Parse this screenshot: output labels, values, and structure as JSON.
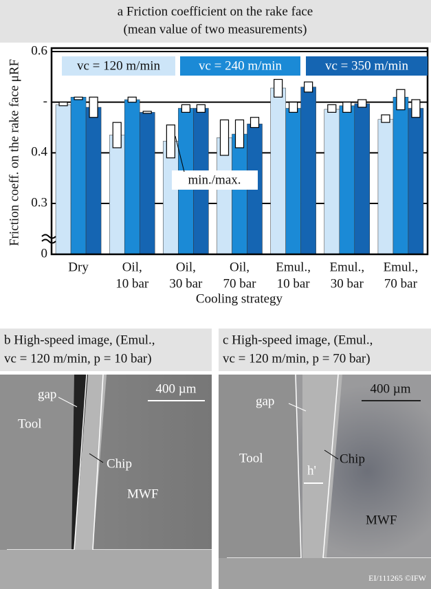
{
  "chart_data": {
    "type": "bar",
    "title": "a  Friction coefficient on the rake face",
    "subtitle": "(mean value of two measurements)",
    "y_label": "Friction coeff. on the rake face μRF",
    "x_label": "Cooling strategy",
    "annotation": "min./max.",
    "categories": [
      [
        "Dry"
      ],
      [
        "Oil,",
        "10 bar"
      ],
      [
        "Oil,",
        "30 bar"
      ],
      [
        "Oil,",
        "70 bar"
      ],
      [
        "Emul.,",
        "10 bar"
      ],
      [
        "Emul.,",
        "30 bar"
      ],
      [
        "Emul.,",
        "70 bar"
      ]
    ],
    "series": [
      {
        "name": "vc = 120 m/min",
        "color": "#cde5f8",
        "values": [
          0.495,
          0.435,
          0.423,
          0.43,
          0.528,
          0.486,
          0.466
        ],
        "min": [
          0.493,
          0.41,
          0.39,
          0.395,
          0.51,
          0.48,
          0.46
        ],
        "max": [
          0.5,
          0.46,
          0.455,
          0.465,
          0.545,
          0.495,
          0.475
        ]
      },
      {
        "name": "vc = 240 m/min",
        "color": "#1b8ad6",
        "values": [
          0.51,
          0.505,
          0.488,
          0.437,
          0.488,
          0.493,
          0.51
        ],
        "min": [
          0.505,
          0.5,
          0.48,
          0.41,
          0.48,
          0.48,
          0.485
        ],
        "max": [
          0.51,
          0.51,
          0.495,
          0.465,
          0.5,
          0.5,
          0.525
        ]
      },
      {
        "name": "vc = 350 m/min",
        "color": "#1565b2",
        "values": [
          0.49,
          0.48,
          0.488,
          0.457,
          0.53,
          0.497,
          0.488
        ],
        "min": [
          0.47,
          0.478,
          0.48,
          0.45,
          0.52,
          0.49,
          0.47
        ],
        "max": [
          0.51,
          0.482,
          0.495,
          0.47,
          0.54,
          0.505,
          0.505
        ]
      }
    ],
    "ylim": [
      0,
      0.6
    ],
    "yticks": [
      0,
      0.3,
      0.4,
      {
        "value": 0.5,
        "label": "-"
      },
      0.6
    ],
    "axis_break": true,
    "grid": true
  },
  "panels": [
    {
      "title": [
        "b  High-speed image, (Emul.,",
        "vc = 120 m/min, p = 10 bar)"
      ],
      "labels": [
        "gap",
        "Tool",
        "Chip",
        "MWF",
        "400 µm"
      ]
    },
    {
      "title": [
        "c  High-speed image, (Emul.,",
        "vc = 120 m/min, p = 70 bar)"
      ],
      "labels": [
        "gap",
        "Tool",
        "Chip",
        "h'",
        "MWF",
        "400 µm"
      ]
    }
  ],
  "footer": "EI/111265 ©IFW"
}
